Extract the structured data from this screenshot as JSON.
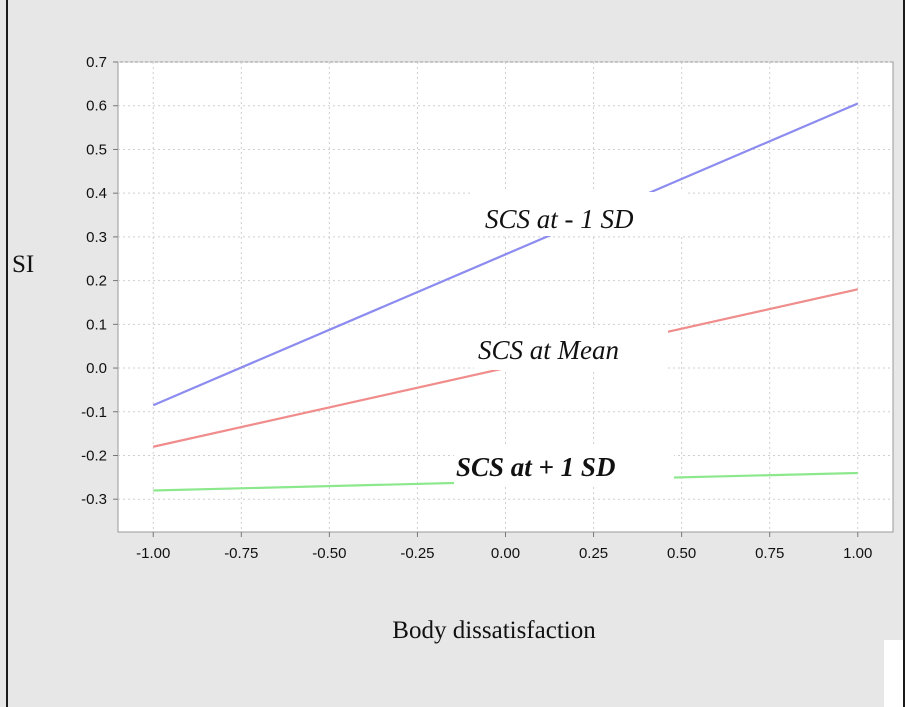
{
  "chart_data": {
    "type": "line",
    "xlabel": "Body dissatisfaction",
    "ylabel": "SI",
    "x": [
      -1.0,
      1.0
    ],
    "xlim": [
      -1.1,
      1.1
    ],
    "ylim": [
      -0.375,
      0.7
    ],
    "x_ticks": [
      "-1.00",
      "-0.75",
      "-0.50",
      "-0.25",
      "0.00",
      "0.25",
      "0.50",
      "0.75",
      "1.00"
    ],
    "y_ticks": [
      "0.7",
      "0.6",
      "0.5",
      "0.4",
      "0.3",
      "0.2",
      "0.1",
      "0.0",
      "-0.1",
      "-0.2",
      "-0.3"
    ],
    "grid": true,
    "series": [
      {
        "name": "SCS at - 1 SD",
        "color": "#8c8cf0",
        "values": [
          -0.085,
          0.605
        ]
      },
      {
        "name": "SCS at Mean",
        "color": "#f08c8c",
        "values": [
          -0.18,
          0.18
        ]
      },
      {
        "name": "SCS at + 1 SD",
        "color": "#8ce88c",
        "values": [
          -0.28,
          -0.24
        ]
      }
    ]
  }
}
